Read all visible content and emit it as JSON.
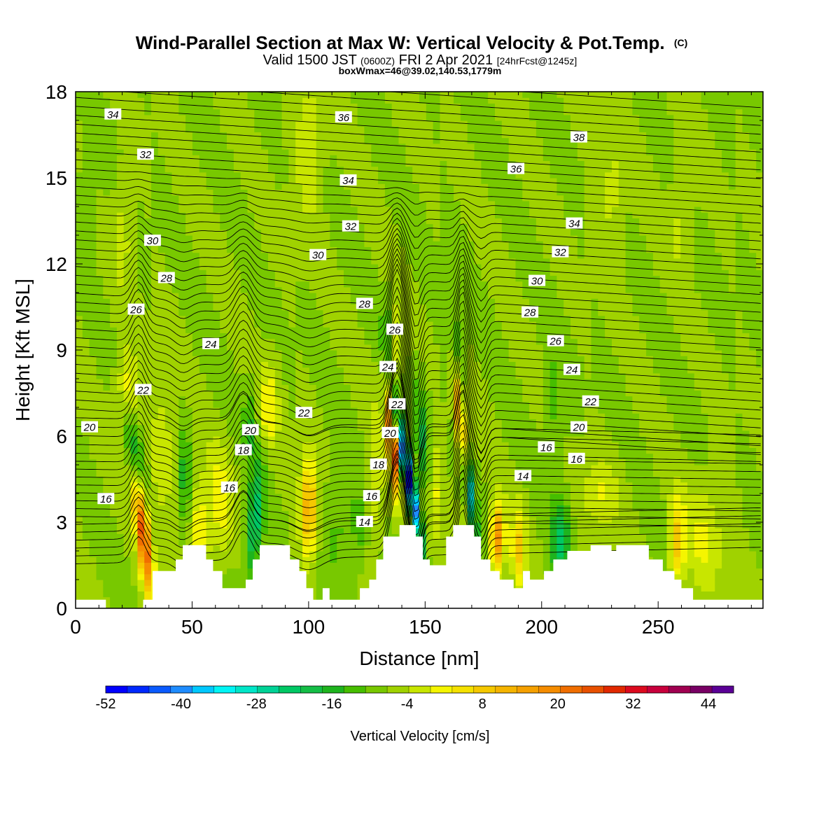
{
  "title": {
    "main": "Wind-Parallel Section at Max W: Vertical Velocity & Pot.Temp.",
    "main_mark": "(C)",
    "valid_prefix": "Valid 1500 JST",
    "valid_z": "(0600Z)",
    "valid_date": "FRI 2 Apr 2021",
    "valid_fcst": "[24hrFcst@1245z]",
    "box": "boxWmax=46@39.02,140.53,1779m"
  },
  "colors": {
    "background_field": "#f5f500",
    "positive": [
      "#f7e51a",
      "#f5c800",
      "#f5a800",
      "#f08a00",
      "#f06400",
      "#e83200",
      "#dc0a1a",
      "#b40040"
    ],
    "negative": [
      "#c6e600",
      "#96d200",
      "#5ac300",
      "#1eb41e",
      "#00c87a",
      "#00e6c8",
      "#1ea0ff",
      "#0028ff"
    ],
    "contour": "#000000",
    "terrain": "#ffffff"
  },
  "chart_data": {
    "type": "heatmap",
    "xlabel": "Distance [nm]",
    "ylabel": "Height [Kft MSL]",
    "xlim": [
      0,
      295
    ],
    "ylim": [
      0,
      18
    ],
    "x_ticks": [
      0,
      50,
      100,
      150,
      200,
      250
    ],
    "y_ticks": [
      0,
      3,
      6,
      9,
      12,
      15,
      18
    ],
    "variable": "Vertical Velocity [cm/s]",
    "contour_variable": "Potential Temperature (C)",
    "colorbar": {
      "label": "Vertical Velocity [cm/s]",
      "min": -52,
      "max": 48,
      "step": 4,
      "tick_labels": [
        "-52",
        "-40",
        "-28",
        "-16",
        "-4",
        "8",
        "20",
        "32",
        "44"
      ],
      "colors": [
        "#0000ff",
        "#0028ff",
        "#0a5aff",
        "#1e8cff",
        "#00c8ff",
        "#00f5f5",
        "#00e6c8",
        "#00d296",
        "#00c864",
        "#14be46",
        "#1eb41e",
        "#46be00",
        "#78c800",
        "#a0d200",
        "#c8e600",
        "#f5f500",
        "#f5e100",
        "#f5c800",
        "#f5b400",
        "#f5a000",
        "#f58c00",
        "#f06e00",
        "#e85000",
        "#e12800",
        "#dc0a1e",
        "#c8003c",
        "#a00050",
        "#780064",
        "#5a0096"
      ]
    },
    "terrain_kft": [
      [
        0,
        0.3
      ],
      [
        13,
        0.3
      ],
      [
        13,
        0
      ],
      [
        29,
        0
      ],
      [
        29,
        0.3
      ],
      [
        33,
        0.3
      ],
      [
        33,
        1.3
      ],
      [
        43,
        1.3
      ],
      [
        43,
        1.7
      ],
      [
        46,
        1.7
      ],
      [
        46,
        2.2
      ],
      [
        56,
        2.2
      ],
      [
        56,
        1.7
      ],
      [
        59,
        1.7
      ],
      [
        59,
        1.3
      ],
      [
        63,
        1.3
      ],
      [
        63,
        0.7
      ],
      [
        73,
        0.7
      ],
      [
        73,
        1.0
      ],
      [
        76,
        1.0
      ],
      [
        76,
        1.7
      ],
      [
        79,
        1.7
      ],
      [
        79,
        2.2
      ],
      [
        86,
        2.2
      ],
      [
        86,
        2.2
      ],
      [
        92,
        2.2
      ],
      [
        92,
        1.7
      ],
      [
        96,
        1.7
      ],
      [
        96,
        1.3
      ],
      [
        99,
        1.3
      ],
      [
        99,
        0.7
      ],
      [
        102,
        0.7
      ],
      [
        102,
        0.3
      ],
      [
        106,
        0.3
      ],
      [
        106,
        0.7
      ],
      [
        109,
        0.7
      ],
      [
        109,
        0.3
      ],
      [
        122,
        0.3
      ],
      [
        122,
        0.7
      ],
      [
        126,
        0.7
      ],
      [
        126,
        1.0
      ],
      [
        129,
        1.0
      ],
      [
        129,
        1.7
      ],
      [
        132,
        1.7
      ],
      [
        132,
        2.5
      ],
      [
        139,
        2.5
      ],
      [
        139,
        2.9
      ],
      [
        146,
        2.9
      ],
      [
        146,
        2.5
      ],
      [
        149,
        2.5
      ],
      [
        149,
        1.7
      ],
      [
        152,
        1.7
      ],
      [
        152,
        1.5
      ],
      [
        159,
        1.5
      ],
      [
        159,
        2.5
      ],
      [
        162,
        2.5
      ],
      [
        162,
        2.9
      ],
      [
        171,
        2.9
      ],
      [
        171,
        2.5
      ],
      [
        174,
        2.5
      ],
      [
        174,
        1.7
      ],
      [
        178,
        1.7
      ],
      [
        178,
        1.3
      ],
      [
        182,
        1.3
      ],
      [
        182,
        1.0
      ],
      [
        188,
        1.0
      ],
      [
        188,
        0.7
      ],
      [
        192,
        0.7
      ],
      [
        192,
        1.3
      ],
      [
        195,
        1.3
      ],
      [
        195,
        1.0
      ],
      [
        201,
        1.0
      ],
      [
        201,
        1.3
      ],
      [
        205,
        1.3
      ],
      [
        205,
        1.7
      ],
      [
        211,
        1.7
      ],
      [
        211,
        2.0
      ],
      [
        221,
        2.0
      ],
      [
        221,
        2.2
      ],
      [
        230,
        2.2
      ],
      [
        230,
        2.0
      ],
      [
        232,
        2.0
      ],
      [
        232,
        2.2
      ],
      [
        246,
        2.2
      ],
      [
        246,
        1.7
      ],
      [
        252,
        1.7
      ],
      [
        252,
        1.3
      ],
      [
        257,
        1.3
      ],
      [
        257,
        1.0
      ],
      [
        260,
        1.0
      ],
      [
        260,
        0.7
      ],
      [
        265,
        0.7
      ],
      [
        265,
        0.3
      ],
      [
        295,
        0.3
      ],
      [
        295,
        0
      ]
    ],
    "w_features": [
      {
        "x": 29,
        "y": 2.5,
        "w": 40,
        "sx": 3.0,
        "sy": 2.2,
        "tilt": -1.5
      },
      {
        "x": 25,
        "y": 5.5,
        "w": -16,
        "sx": 3.5,
        "sy": 1.8,
        "tilt": -2
      },
      {
        "x": 22,
        "y": 7.5,
        "w": 12,
        "sx": 5,
        "sy": 1.5,
        "tilt": 0
      },
      {
        "x": 37,
        "y": 5.5,
        "w": 8,
        "sx": 5,
        "sy": 2.0,
        "tilt": 0
      },
      {
        "x": 47,
        "y": 4.5,
        "w": -10,
        "sx": 2.5,
        "sy": 2.0,
        "tilt": 0
      },
      {
        "x": 53,
        "y": 2.5,
        "w": 14,
        "sx": 4,
        "sy": 2.0,
        "tilt": 0
      },
      {
        "x": 62,
        "y": 3.5,
        "w": 10,
        "sx": 5,
        "sy": 2.0,
        "tilt": 0
      },
      {
        "x": 77,
        "y": 3.0,
        "w": -18,
        "sx": 3.5,
        "sy": 2.2,
        "tilt": 1
      },
      {
        "x": 75,
        "y": 6.5,
        "w": -8,
        "sx": 3,
        "sy": 1.5,
        "tilt": 0
      },
      {
        "x": 83,
        "y": 7.0,
        "w": 12,
        "sx": 4,
        "sy": 1.5,
        "tilt": 0
      },
      {
        "x": 100,
        "y": 3.5,
        "w": 24,
        "sx": 3.5,
        "sy": 1.7,
        "tilt": 0
      },
      {
        "x": 113,
        "y": 3.0,
        "w": -6,
        "sx": 6,
        "sy": 2.0,
        "tilt": 0
      },
      {
        "x": 122,
        "y": 2.5,
        "w": -6,
        "sx": 4,
        "sy": 1.5,
        "tilt": 0
      },
      {
        "x": 128,
        "y": 4.0,
        "w": 8,
        "sx": 4,
        "sy": 2.5,
        "tilt": 0
      },
      {
        "x": 136,
        "y": 5.8,
        "w": 44,
        "sx": 2.0,
        "sy": 1.7,
        "tilt": -1.0
      },
      {
        "x": 143,
        "y": 4.5,
        "w": -52,
        "sx": 2.2,
        "sy": 2.3,
        "tilt": -2.2
      },
      {
        "x": 137,
        "y": 9.3,
        "w": 10,
        "sx": 3,
        "sy": 1.3,
        "tilt": 0
      },
      {
        "x": 134,
        "y": 9.5,
        "w": -8,
        "sx": 2.5,
        "sy": 1.5,
        "tilt": 0
      },
      {
        "x": 149,
        "y": 6.0,
        "w": -12,
        "sx": 3,
        "sy": 2.0,
        "tilt": -1
      },
      {
        "x": 154,
        "y": 4.0,
        "w": 10,
        "sx": 3,
        "sy": 1.8,
        "tilt": 0
      },
      {
        "x": 165,
        "y": 6.5,
        "w": 32,
        "sx": 2.0,
        "sy": 2.0,
        "tilt": -1.2
      },
      {
        "x": 169,
        "y": 4.2,
        "w": -32,
        "sx": 1.8,
        "sy": 1.6,
        "tilt": -1.5
      },
      {
        "x": 163,
        "y": 9.0,
        "w": -10,
        "sx": 2.5,
        "sy": 1.8,
        "tilt": -1
      },
      {
        "x": 181,
        "y": 2.4,
        "w": 30,
        "sx": 3.0,
        "sy": 1.2,
        "tilt": 0
      },
      {
        "x": 190,
        "y": 2.0,
        "w": 16,
        "sx": 3,
        "sy": 1.5,
        "tilt": 0
      },
      {
        "x": 208,
        "y": 2.3,
        "w": -16,
        "sx": 4,
        "sy": 1.5,
        "tilt": 0
      },
      {
        "x": 205,
        "y": 7.0,
        "w": -6,
        "sx": 4,
        "sy": 2.0,
        "tilt": 0
      },
      {
        "x": 225,
        "y": 4.0,
        "w": 8,
        "sx": 8,
        "sy": 1.2,
        "tilt": 0
      },
      {
        "x": 258,
        "y": 2.3,
        "w": 18,
        "sx": 3.5,
        "sy": 1.5,
        "tilt": 0
      },
      {
        "x": 270,
        "y": 2.5,
        "w": 8,
        "sx": 8,
        "sy": 2.0,
        "tilt": 0
      },
      {
        "x": 5,
        "y": 14.5,
        "w": -6,
        "sx": 4,
        "sy": 1.8,
        "tilt": 0
      },
      {
        "x": 100,
        "y": 16.0,
        "w": 8,
        "sx": 6,
        "sy": 2.5,
        "tilt": 0
      },
      {
        "x": 20,
        "y": 13.0,
        "w": 6,
        "sx": 4,
        "sy": 2.0,
        "tilt": 0
      },
      {
        "x": 230,
        "y": 14.5,
        "w": 6,
        "sx": 6,
        "sy": 2.0,
        "tilt": 0
      },
      {
        "x": 260,
        "y": 14.0,
        "w": 6,
        "sx": 5,
        "sy": 2.0,
        "tilt": 0
      }
    ],
    "contour_labels": [
      {
        "text": "34",
        "x": 16,
        "y": 17.2
      },
      {
        "text": "36",
        "x": 115,
        "y": 17.1
      },
      {
        "text": "38",
        "x": 216,
        "y": 16.4
      },
      {
        "text": "32",
        "x": 30,
        "y": 15.8
      },
      {
        "text": "36",
        "x": 189,
        "y": 15.3
      },
      {
        "text": "34",
        "x": 117,
        "y": 14.9
      },
      {
        "text": "32",
        "x": 118,
        "y": 13.3
      },
      {
        "text": "34",
        "x": 214,
        "y": 13.4
      },
      {
        "text": "30",
        "x": 33,
        "y": 12.8
      },
      {
        "text": "32",
        "x": 208,
        "y": 12.4
      },
      {
        "text": "30",
        "x": 104,
        "y": 12.3
      },
      {
        "text": "28",
        "x": 39,
        "y": 11.5
      },
      {
        "text": "30",
        "x": 198,
        "y": 11.4
      },
      {
        "text": "28",
        "x": 124,
        "y": 10.6
      },
      {
        "text": "28",
        "x": 195,
        "y": 10.3
      },
      {
        "text": "26",
        "x": 26,
        "y": 10.4
      },
      {
        "text": "26",
        "x": 137,
        "y": 9.7
      },
      {
        "text": "24",
        "x": 58,
        "y": 9.2
      },
      {
        "text": "26",
        "x": 206,
        "y": 9.3
      },
      {
        "text": "24",
        "x": 134,
        "y": 8.4
      },
      {
        "text": "24",
        "x": 213,
        "y": 8.3
      },
      {
        "text": "22",
        "x": 29,
        "y": 7.6
      },
      {
        "text": "22",
        "x": 138,
        "y": 7.1
      },
      {
        "text": "22",
        "x": 221,
        "y": 7.2
      },
      {
        "text": "22",
        "x": 98,
        "y": 6.8
      },
      {
        "text": "20",
        "x": 6,
        "y": 6.3
      },
      {
        "text": "20",
        "x": 75,
        "y": 6.2
      },
      {
        "text": "20",
        "x": 135,
        "y": 6.1
      },
      {
        "text": "20",
        "x": 216,
        "y": 6.3
      },
      {
        "text": "18",
        "x": 72,
        "y": 5.5
      },
      {
        "text": "18",
        "x": 130,
        "y": 5.0
      },
      {
        "text": "16",
        "x": 202,
        "y": 5.6
      },
      {
        "text": "16",
        "x": 215,
        "y": 5.2
      },
      {
        "text": "16",
        "x": 66,
        "y": 4.2
      },
      {
        "text": "14",
        "x": 192,
        "y": 4.6
      },
      {
        "text": "16",
        "x": 13,
        "y": 3.8
      },
      {
        "text": "16",
        "x": 127,
        "y": 3.9
      },
      {
        "text": "14",
        "x": 124,
        "y": 3.0
      }
    ]
  }
}
